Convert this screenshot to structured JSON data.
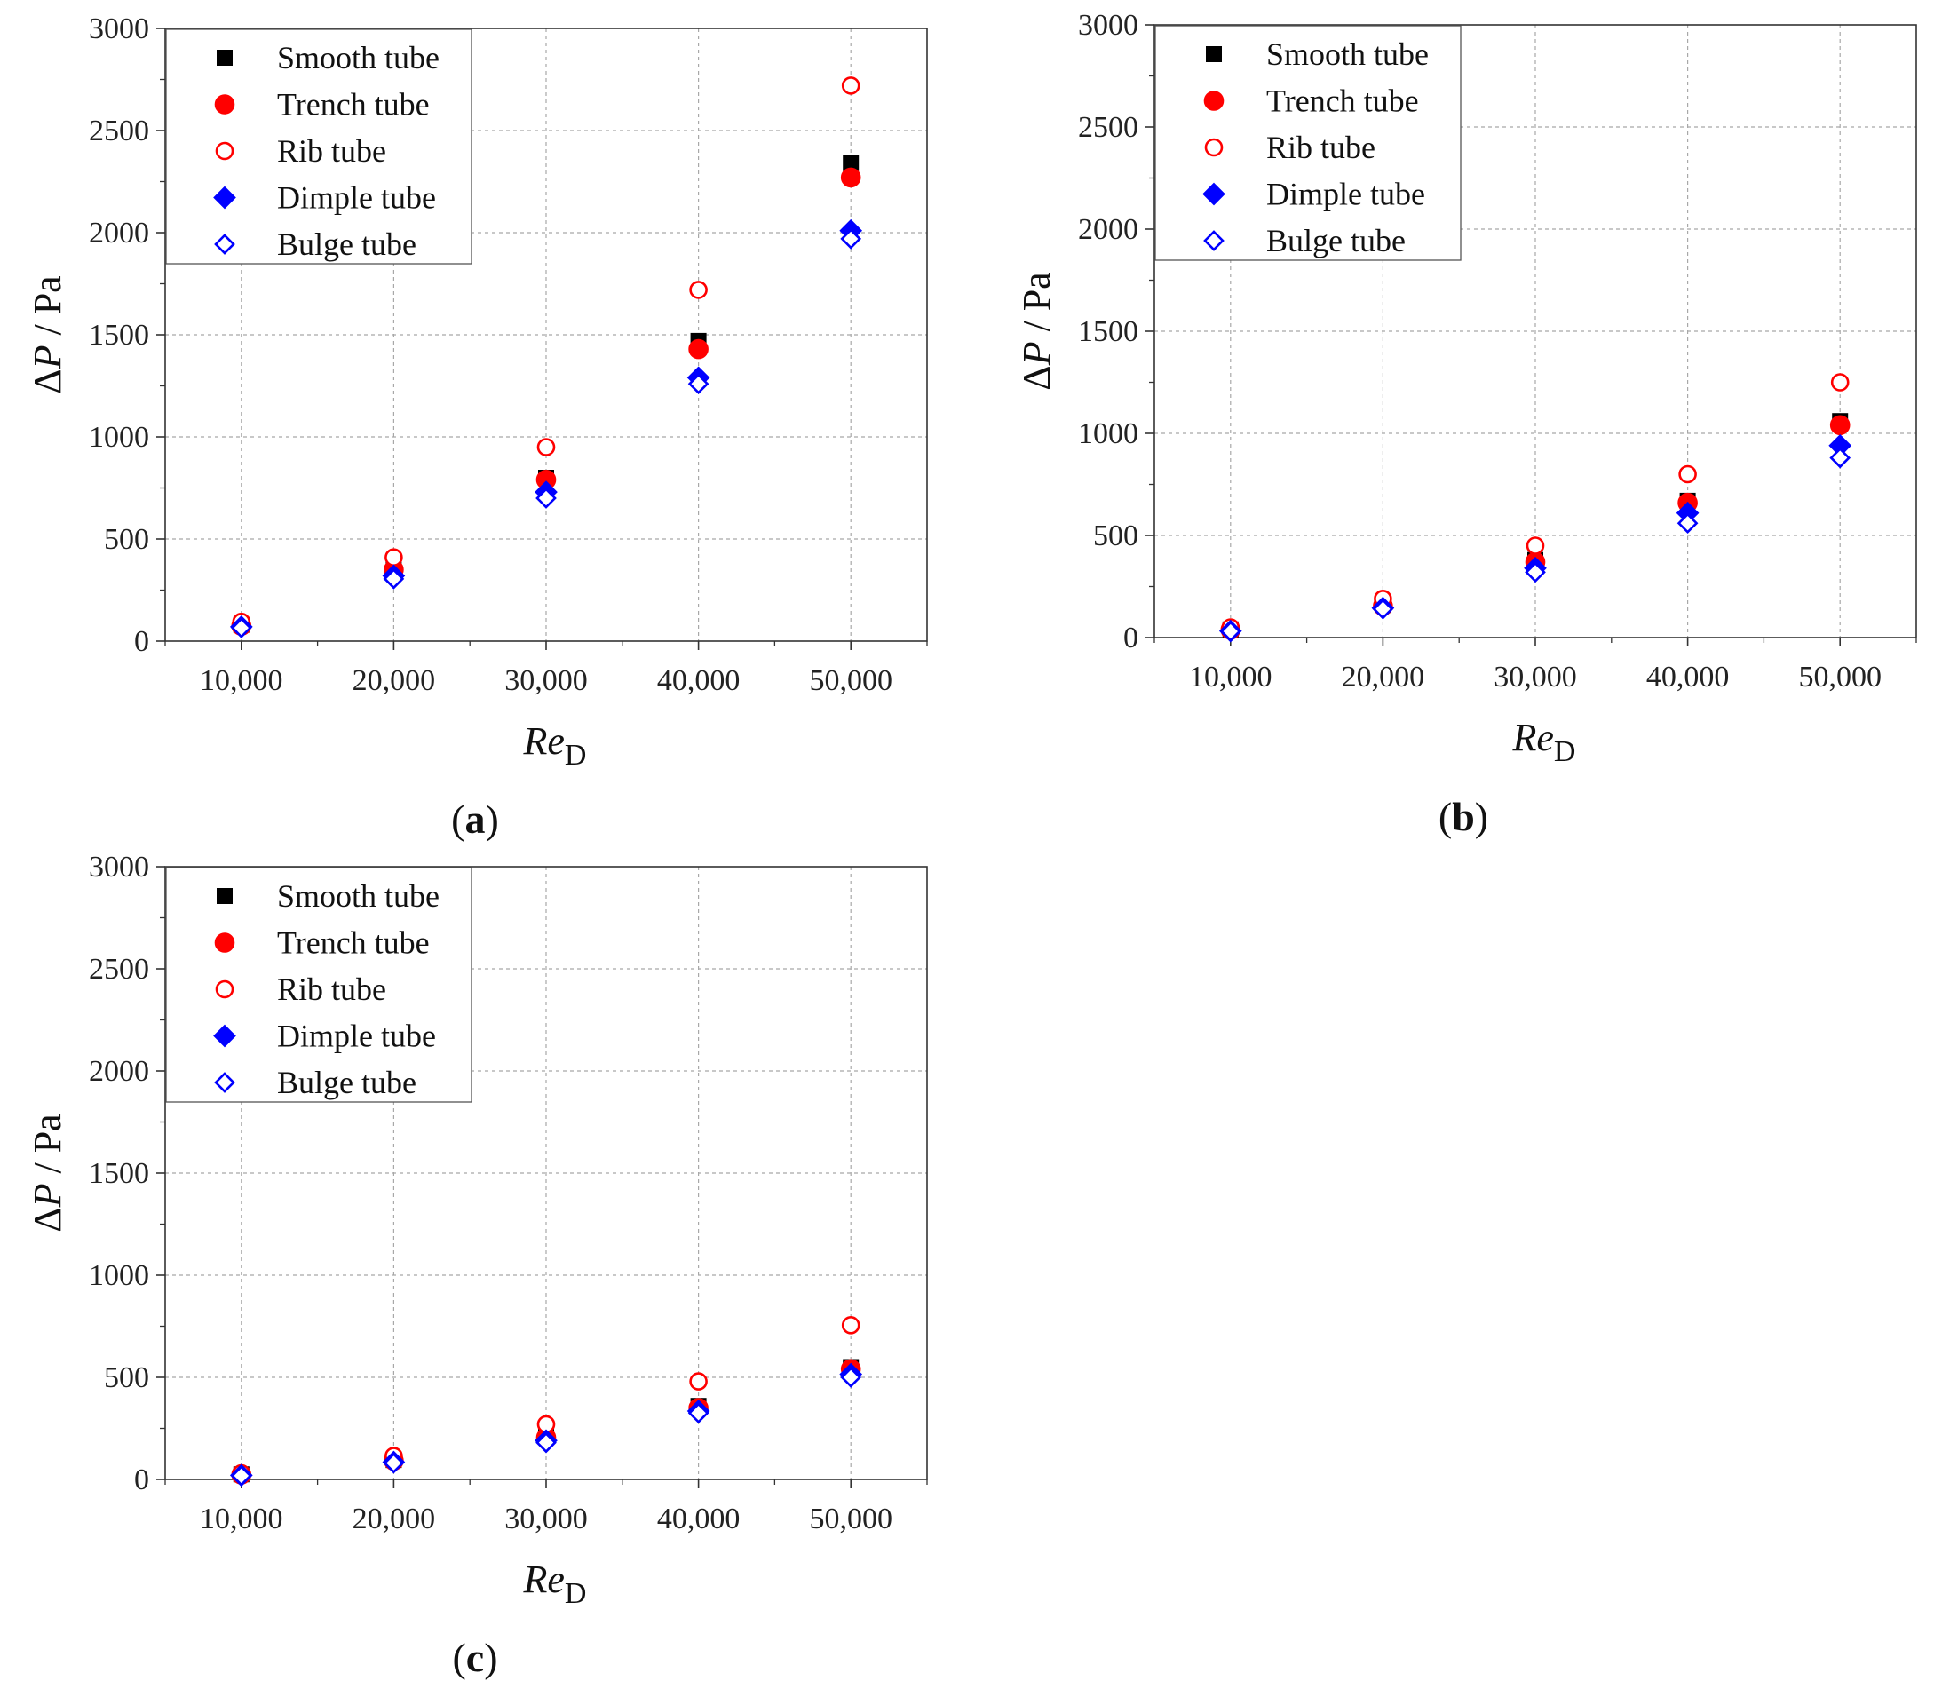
{
  "figure": {
    "y_axis_label": {
      "delta": "Δ",
      "var": "P",
      "unit": " / Pa"
    },
    "x_axis_label": {
      "main": "Re",
      "sub": "D"
    }
  },
  "legend": [
    {
      "key": "smooth",
      "label": "Smooth tube",
      "marker": "square",
      "filled": true,
      "color": "#000000"
    },
    {
      "key": "trench",
      "label": "Trench tube",
      "marker": "circle",
      "filled": true,
      "color": "#ff0000"
    },
    {
      "key": "rib",
      "label": "Rib tube",
      "marker": "circle",
      "filled": false,
      "color": "#ff0000"
    },
    {
      "key": "dimple",
      "label": "Dimple tube",
      "marker": "diamond",
      "filled": true,
      "color": "#0000ff"
    },
    {
      "key": "bulge",
      "label": "Bulge tube",
      "marker": "diamond",
      "filled": false,
      "color": "#0000ff"
    }
  ],
  "chart_data": [
    {
      "panel": "(a)",
      "panel_paren_open": "(",
      "panel_letter": "a",
      "panel_paren_close": ")",
      "type": "scatter",
      "xlabel": "ReD",
      "ylabel": "ΔP / Pa",
      "xlim": [
        5000,
        55000
      ],
      "ylim": [
        0,
        3000
      ],
      "x_ticks": [
        10000,
        20000,
        30000,
        40000,
        50000
      ],
      "x_tick_labels": [
        "10,000",
        "20,000",
        "30,000",
        "40,000",
        "50,000"
      ],
      "y_ticks": [
        0,
        500,
        1000,
        1500,
        2000,
        2500,
        3000
      ],
      "y_tick_labels": [
        "0",
        "500",
        "1000",
        "1500",
        "2000",
        "2500",
        "3000"
      ],
      "grid": true,
      "legend_position": "top-left",
      "x": [
        10000,
        20000,
        30000,
        40000,
        50000
      ],
      "series": [
        {
          "name": "Smooth tube",
          "values": [
            80,
            360,
            800,
            1470,
            2340
          ]
        },
        {
          "name": "Trench tube",
          "values": [
            75,
            350,
            790,
            1430,
            2270
          ]
        },
        {
          "name": "Rib tube",
          "values": [
            95,
            410,
            950,
            1720,
            2720
          ]
        },
        {
          "name": "Dimple tube",
          "values": [
            70,
            320,
            730,
            1290,
            2010
          ]
        },
        {
          "name": "Bulge tube",
          "values": [
            65,
            305,
            700,
            1260,
            1970
          ]
        }
      ]
    },
    {
      "panel": "(b)",
      "panel_paren_open": "(",
      "panel_letter": "b",
      "panel_paren_close": ")",
      "type": "scatter",
      "xlabel": "ReD",
      "ylabel": "ΔP / Pa",
      "xlim": [
        5000,
        55000
      ],
      "ylim": [
        0,
        3000
      ],
      "x_ticks": [
        10000,
        20000,
        30000,
        40000,
        50000
      ],
      "x_tick_labels": [
        "10,000",
        "20,000",
        "30,000",
        "40,000",
        "50,000"
      ],
      "y_ticks": [
        0,
        500,
        1000,
        1500,
        2000,
        2500,
        3000
      ],
      "y_tick_labels": [
        "0",
        "500",
        "1000",
        "1500",
        "2000",
        "2500",
        "3000"
      ],
      "grid": true,
      "legend_position": "top-left",
      "x": [
        10000,
        20000,
        30000,
        40000,
        50000
      ],
      "series": [
        {
          "name": "Smooth tube",
          "values": [
            40,
            160,
            380,
            670,
            1060
          ]
        },
        {
          "name": "Trench tube",
          "values": [
            38,
            155,
            370,
            660,
            1040
          ]
        },
        {
          "name": "Rib tube",
          "values": [
            50,
            190,
            450,
            800,
            1250
          ]
        },
        {
          "name": "Dimple tube",
          "values": [
            32,
            145,
            340,
            610,
            940
          ]
        },
        {
          "name": "Bulge tube",
          "values": [
            30,
            140,
            320,
            560,
            880
          ]
        }
      ]
    },
    {
      "panel": "(c)",
      "panel_paren_open": "(",
      "panel_letter": "c",
      "panel_paren_close": ")",
      "type": "scatter",
      "xlabel": "ReD",
      "ylabel": "ΔP / Pa",
      "xlim": [
        5000,
        55000
      ],
      "ylim": [
        0,
        3000
      ],
      "x_ticks": [
        10000,
        20000,
        30000,
        40000,
        50000
      ],
      "x_tick_labels": [
        "10,000",
        "20,000",
        "30,000",
        "40,000",
        "50,000"
      ],
      "y_ticks": [
        0,
        500,
        1000,
        1500,
        2000,
        2500,
        3000
      ],
      "y_tick_labels": [
        "0",
        "500",
        "1000",
        "1500",
        "2000",
        "2500",
        "3000"
      ],
      "grid": true,
      "legend_position": "top-left",
      "x": [
        10000,
        20000,
        30000,
        40000,
        50000
      ],
      "series": [
        {
          "name": "Smooth tube",
          "values": [
            25,
            95,
            210,
            360,
            550
          ]
        },
        {
          "name": "Trench tube",
          "values": [
            24,
            92,
            205,
            350,
            540
          ]
        },
        {
          "name": "Rib tube",
          "values": [
            30,
            115,
            270,
            480,
            755
          ]
        },
        {
          "name": "Dimple tube",
          "values": [
            20,
            85,
            190,
            335,
            515
          ]
        },
        {
          "name": "Bulge tube",
          "values": [
            18,
            80,
            180,
            325,
            500
          ]
        }
      ]
    }
  ]
}
